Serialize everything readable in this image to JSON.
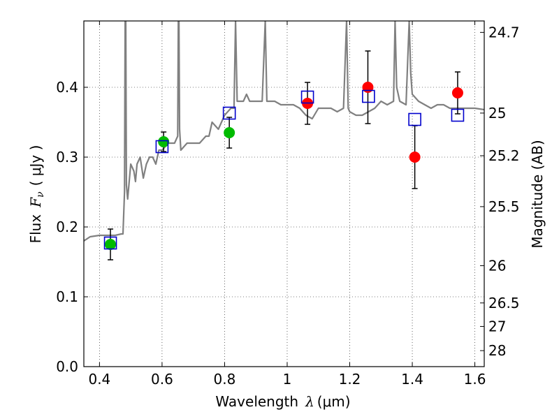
{
  "chart_data": {
    "type": "scatter",
    "xlabel": {
      "text": "Wavelength",
      "symbol": "λ",
      "unit": "(μm)"
    },
    "ylabel": {
      "text": "Flux",
      "symbol": "F",
      "subscript": "ν",
      "unit": "( μJy )"
    },
    "y2label": "Magnitude (AB)",
    "xlim": [
      0.35,
      1.63
    ],
    "ylim": [
      0.0,
      0.495
    ],
    "grid": true,
    "x_ticks": [
      0.4,
      0.6,
      0.8,
      1.0,
      1.2,
      1.4,
      1.6
    ],
    "x_tick_labels": [
      "0.4",
      "0.6",
      "0.8",
      "1",
      "1.2",
      "1.4",
      "1.6"
    ],
    "y_ticks": [
      0.0,
      0.1,
      0.2,
      0.3,
      0.4
    ],
    "y_tick_labels": [
      "0.0",
      "0.1",
      "0.2",
      "0.3",
      "0.4"
    ],
    "y2_ticks": [
      "24.7",
      "25",
      "25.2",
      "25.5",
      "26",
      "26.5",
      "27",
      "28"
    ],
    "colors": {
      "model": "#808080",
      "green": "#00bb00",
      "red": "#ff0000",
      "box": "#0000cc",
      "errorbar": "#000000"
    },
    "model_spectrum": {
      "name": "",
      "x": [
        0.35,
        0.37,
        0.4,
        0.43,
        0.45,
        0.47,
        0.475,
        0.48,
        0.482,
        0.484,
        0.486,
        0.49,
        0.5,
        0.51,
        0.515,
        0.52,
        0.53,
        0.54,
        0.55,
        0.56,
        0.57,
        0.58,
        0.59,
        0.6,
        0.62,
        0.64,
        0.65,
        0.652,
        0.654,
        0.656,
        0.66,
        0.68,
        0.7,
        0.72,
        0.74,
        0.75,
        0.76,
        0.78,
        0.8,
        0.82,
        0.83,
        0.835,
        0.84,
        0.85,
        0.86,
        0.87,
        0.88,
        0.9,
        0.92,
        0.93,
        0.935,
        0.94,
        0.96,
        0.98,
        1.0,
        1.02,
        1.04,
        1.06,
        1.08,
        1.1,
        1.12,
        1.14,
        1.16,
        1.18,
        1.19,
        1.195,
        1.2,
        1.22,
        1.24,
        1.26,
        1.28,
        1.3,
        1.32,
        1.34,
        1.345,
        1.35,
        1.36,
        1.38,
        1.39,
        1.395,
        1.4,
        1.42,
        1.44,
        1.46,
        1.48,
        1.5,
        1.52,
        1.54,
        1.56,
        1.58,
        1.6,
        1.63
      ],
      "y": [
        0.18,
        0.186,
        0.188,
        0.188,
        0.188,
        0.19,
        0.19,
        0.25,
        0.495,
        0.495,
        0.26,
        0.24,
        0.29,
        0.28,
        0.265,
        0.29,
        0.3,
        0.27,
        0.29,
        0.3,
        0.3,
        0.29,
        0.31,
        0.31,
        0.32,
        0.32,
        0.33,
        0.495,
        0.495,
        0.34,
        0.31,
        0.32,
        0.32,
        0.32,
        0.33,
        0.33,
        0.35,
        0.34,
        0.36,
        0.37,
        0.37,
        0.495,
        0.38,
        0.38,
        0.38,
        0.39,
        0.38,
        0.38,
        0.38,
        0.495,
        0.38,
        0.38,
        0.38,
        0.375,
        0.375,
        0.375,
        0.37,
        0.36,
        0.355,
        0.37,
        0.37,
        0.37,
        0.365,
        0.37,
        0.495,
        0.37,
        0.365,
        0.36,
        0.36,
        0.365,
        0.37,
        0.38,
        0.375,
        0.38,
        0.495,
        0.4,
        0.38,
        0.375,
        0.495,
        0.42,
        0.39,
        0.38,
        0.375,
        0.37,
        0.375,
        0.375,
        0.37,
        0.37,
        0.37,
        0.37,
        0.37,
        0.368
      ]
    },
    "series": [
      {
        "marker": "circle",
        "color": "green",
        "x": [
          0.435,
          0.605,
          0.815
        ],
        "values": [
          0.175,
          0.322,
          0.335
        ],
        "err": [
          0.022,
          0.014,
          0.022
        ]
      },
      {
        "marker": "circle",
        "color": "red",
        "x": [
          1.065,
          1.258,
          1.408,
          1.545
        ],
        "values": [
          0.377,
          0.4,
          0.3,
          0.392
        ],
        "err": [
          0.03,
          0.052,
          0.045,
          0.03
        ]
      },
      {
        "marker": "square",
        "color": "box",
        "x": [
          0.435,
          0.6,
          0.815,
          1.065,
          1.26,
          1.408,
          1.545
        ],
        "values": [
          0.177,
          0.315,
          0.363,
          0.386,
          0.387,
          0.354,
          0.36
        ]
      }
    ]
  }
}
